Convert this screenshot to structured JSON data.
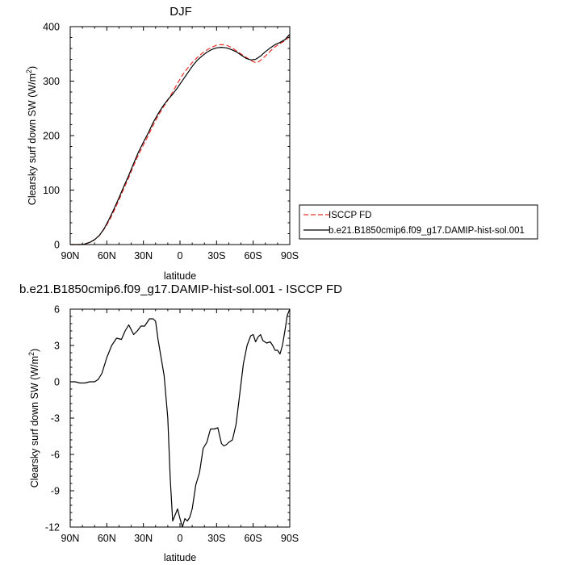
{
  "chart_data": [
    {
      "type": "line",
      "title": "DJF",
      "xlabel": "latitude",
      "ylabel": "Clearsky surf down SW (W/m",
      "ylabel_sup": "2",
      "ylabel_tail": ")",
      "xlim": [
        90,
        -90
      ],
      "ylim": [
        0,
        400
      ],
      "x_tick_values": [
        90,
        60,
        30,
        0,
        -30,
        -60,
        -90
      ],
      "x_tick_labels": [
        "90N",
        "60N",
        "30N",
        "0",
        "30S",
        "60S",
        "90S"
      ],
      "y_tick_values": [
        0,
        100,
        200,
        300,
        400
      ],
      "y_tick_labels": [
        "0",
        "100",
        "200",
        "300",
        "400"
      ],
      "legend_position": "right",
      "series": [
        {
          "name": "ISCCP FD",
          "color": "#e8302a",
          "dash": "dashed",
          "x": [
            90,
            86,
            82,
            78,
            74,
            70,
            66,
            62,
            58,
            54,
            50,
            46,
            42,
            38,
            34,
            30,
            26,
            22,
            18,
            14,
            10,
            6,
            2,
            -2,
            -6,
            -10,
            -14,
            -18,
            -22,
            -26,
            -30,
            -34,
            -38,
            -42,
            -46,
            -50,
            -54,
            -58,
            -62,
            -64,
            -66,
            -70,
            -74,
            -78,
            -82,
            -86,
            -90
          ],
          "values": [
            0,
            0,
            0,
            1,
            4,
            9,
            17,
            29,
            44,
            62,
            82,
            103,
            123,
            145,
            165,
            183,
            200,
            219,
            236,
            251,
            265,
            280,
            296,
            311,
            323,
            334,
            343,
            351,
            357,
            362,
            366,
            367,
            366,
            362,
            356,
            350,
            344,
            338,
            334,
            335,
            338,
            346,
            355,
            363,
            369,
            374,
            382
          ]
        },
        {
          "name": "b.e21.B1850cmip6.f09_g17.DAMIP-hist-sol.001",
          "color": "#000000",
          "dash": "solid",
          "x": [
            90,
            86,
            82,
            78,
            74,
            70,
            66,
            62,
            58,
            54,
            50,
            46,
            42,
            38,
            34,
            30,
            26,
            22,
            18,
            14,
            10,
            6,
            2,
            -2,
            -6,
            -10,
            -14,
            -18,
            -22,
            -26,
            -30,
            -34,
            -38,
            -42,
            -46,
            -50,
            -54,
            -58,
            -62,
            -64,
            -66,
            -70,
            -74,
            -78,
            -82,
            -86,
            -90
          ],
          "values": [
            0,
            0,
            0,
            1,
            4,
            9,
            17,
            30,
            47,
            66,
            86,
            107,
            127,
            149,
            170,
            188,
            205,
            224,
            240,
            254,
            266,
            276,
            288,
            301,
            314,
            327,
            338,
            346,
            353,
            358,
            361,
            362,
            361,
            358,
            354,
            348,
            342,
            339,
            340,
            343,
            346,
            354,
            361,
            367,
            371,
            376,
            386
          ]
        }
      ]
    },
    {
      "type": "line",
      "title": "b.e21.B1850cmip6.f09_g17.DAMIP-hist-sol.001 - ISCCP FD",
      "xlabel": "latitude",
      "ylabel": "Clearsky surf down SW (W/m",
      "ylabel_sup": "2",
      "ylabel_tail": ")",
      "xlim": [
        90,
        -90
      ],
      "ylim": [
        -12,
        6
      ],
      "x_tick_values": [
        90,
        60,
        30,
        0,
        -30,
        -60,
        -90
      ],
      "x_tick_labels": [
        "90N",
        "60N",
        "30N",
        "0",
        "30S",
        "60S",
        "90S"
      ],
      "y_tick_values": [
        -12,
        -9,
        -6,
        -3,
        0,
        3,
        6
      ],
      "y_tick_labels": [
        "-12",
        "-9",
        "-6",
        "-3",
        "0",
        "3",
        "6"
      ],
      "series": [
        {
          "color": "#000000",
          "dash": "solid",
          "x": [
            90,
            86,
            82,
            78,
            74,
            70,
            67,
            64,
            60,
            56,
            52,
            48,
            45,
            42,
            40,
            38,
            35,
            32,
            29,
            25,
            22,
            20,
            18,
            16,
            13,
            10,
            8,
            6,
            4,
            2,
            0,
            -2,
            -4,
            -6,
            -8,
            -10,
            -13,
            -16,
            -19,
            -22,
            -25,
            -28,
            -31,
            -34,
            -36,
            -38,
            -40,
            -43,
            -46,
            -49,
            -52,
            -55,
            -58,
            -60,
            -62,
            -64,
            -66,
            -68,
            -71,
            -74,
            -76,
            -78,
            -80,
            -82,
            -84,
            -86,
            -88,
            -90
          ],
          "values": [
            0,
            0,
            -0.1,
            -0.1,
            0,
            0,
            0.2,
            0.7,
            2.0,
            3.0,
            3.6,
            3.5,
            4.2,
            4.7,
            4.3,
            3.9,
            4.2,
            4.6,
            4.6,
            5.2,
            5.2,
            5.0,
            3.5,
            2.3,
            0.5,
            -3.0,
            -8.0,
            -11.5,
            -11.0,
            -10.5,
            -11.3,
            -12.0,
            -11.3,
            -11.5,
            -11.2,
            -10.5,
            -8.5,
            -7.5,
            -5.5,
            -5.0,
            -3.9,
            -3.9,
            -3.8,
            -5.1,
            -5.3,
            -5.2,
            -5.0,
            -4.8,
            -3.5,
            -1.0,
            1.5,
            3.0,
            3.8,
            3.9,
            3.3,
            3.7,
            3.9,
            3.4,
            3.2,
            3.3,
            3.0,
            2.6,
            2.6,
            2.3,
            3.0,
            4.2,
            5.5,
            6.0
          ]
        }
      ]
    }
  ]
}
